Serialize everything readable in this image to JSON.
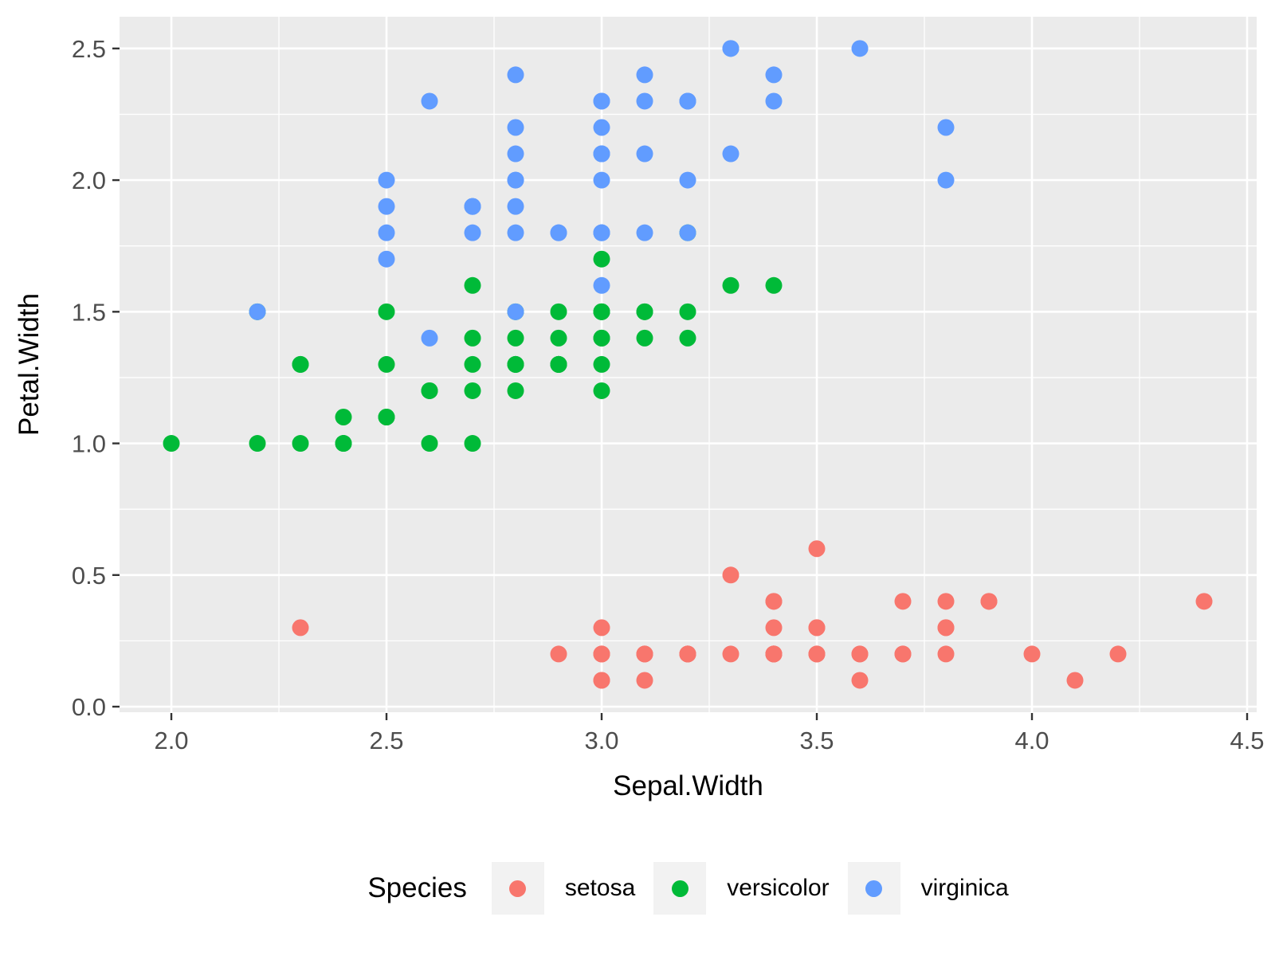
{
  "figure": {
    "background": "#FFFFFF"
  },
  "axes": {
    "x_title": "Sepal.Width",
    "y_title": "Petal.Width",
    "x_tick_labels": [
      "2.0",
      "2.5",
      "3.0",
      "3.5",
      "4.0",
      "4.5"
    ],
    "y_tick_labels": [
      "0.0",
      "0.5",
      "1.0",
      "1.5",
      "2.0",
      "2.5"
    ]
  },
  "legend": {
    "title": "Species",
    "position": "bottom",
    "items": [
      {
        "label": "setosa",
        "color": "#F8766D"
      },
      {
        "label": "versicolor",
        "color": "#00BA38"
      },
      {
        "label": "virginica",
        "color": "#619CFF"
      }
    ]
  },
  "chart_data": {
    "type": "scatter",
    "title": "",
    "xlabel": "Sepal.Width",
    "ylabel": "Petal.Width",
    "x_domain": [
      1.8796,
      4.5222
    ],
    "y_domain": [
      -0.0211,
      2.6206
    ],
    "x_ticks": [
      2.0,
      2.5,
      3.0,
      3.5,
      4.0,
      4.5
    ],
    "y_ticks": [
      0.0,
      0.5,
      1.0,
      1.5,
      2.0,
      2.5
    ],
    "x_minor_ticks": [
      2.25,
      2.75,
      3.25,
      3.75,
      4.25
    ],
    "y_minor_ticks": [
      0.25,
      0.75,
      1.25,
      1.75,
      2.25
    ],
    "grid": "major+minor",
    "legend_position": "bottom",
    "style": {
      "panel_bg": "#EBEBEB",
      "grid_color": "#FFFFFF",
      "major_grid_width": 2.6,
      "minor_grid_width": 1.3,
      "tick_label_color": "#4D4D4D",
      "axis_title_color": "#000000",
      "tick_mark_color": "#333333",
      "point_radius": 10.5,
      "legend_key_bg": "#F2F2F2"
    },
    "series": [
      {
        "name": "setosa",
        "color": "#F8766D",
        "points": [
          [
            3.5,
            0.2
          ],
          [
            3.0,
            0.2
          ],
          [
            3.2,
            0.2
          ],
          [
            3.1,
            0.2
          ],
          [
            3.6,
            0.2
          ],
          [
            3.9,
            0.4
          ],
          [
            3.4,
            0.3
          ],
          [
            3.4,
            0.2
          ],
          [
            2.9,
            0.2
          ],
          [
            3.1,
            0.1
          ],
          [
            3.7,
            0.2
          ],
          [
            3.4,
            0.2
          ],
          [
            3.0,
            0.1
          ],
          [
            3.0,
            0.1
          ],
          [
            4.0,
            0.2
          ],
          [
            4.4,
            0.4
          ],
          [
            3.9,
            0.4
          ],
          [
            3.5,
            0.3
          ],
          [
            3.8,
            0.3
          ],
          [
            3.8,
            0.3
          ],
          [
            3.4,
            0.2
          ],
          [
            3.7,
            0.4
          ],
          [
            3.6,
            0.2
          ],
          [
            3.3,
            0.5
          ],
          [
            3.4,
            0.2
          ],
          [
            3.0,
            0.2
          ],
          [
            3.4,
            0.4
          ],
          [
            3.5,
            0.2
          ],
          [
            3.4,
            0.2
          ],
          [
            3.2,
            0.2
          ],
          [
            3.1,
            0.2
          ],
          [
            3.4,
            0.4
          ],
          [
            4.1,
            0.1
          ],
          [
            4.2,
            0.2
          ],
          [
            3.1,
            0.2
          ],
          [
            3.2,
            0.2
          ],
          [
            3.5,
            0.2
          ],
          [
            3.6,
            0.1
          ],
          [
            3.0,
            0.2
          ],
          [
            3.4,
            0.2
          ],
          [
            3.5,
            0.3
          ],
          [
            2.3,
            0.3
          ],
          [
            3.2,
            0.2
          ],
          [
            3.5,
            0.6
          ],
          [
            3.8,
            0.4
          ],
          [
            3.0,
            0.3
          ],
          [
            3.8,
            0.2
          ],
          [
            3.2,
            0.2
          ],
          [
            3.7,
            0.2
          ],
          [
            3.3,
            0.2
          ]
        ]
      },
      {
        "name": "versicolor",
        "color": "#00BA38",
        "points": [
          [
            3.2,
            1.4
          ],
          [
            3.2,
            1.5
          ],
          [
            3.1,
            1.5
          ],
          [
            2.3,
            1.3
          ],
          [
            2.8,
            1.5
          ],
          [
            2.8,
            1.3
          ],
          [
            3.3,
            1.6
          ],
          [
            2.4,
            1.0
          ],
          [
            2.9,
            1.3
          ],
          [
            2.7,
            1.4
          ],
          [
            2.0,
            1.0
          ],
          [
            3.0,
            1.5
          ],
          [
            2.2,
            1.0
          ],
          [
            2.9,
            1.4
          ],
          [
            2.9,
            1.3
          ],
          [
            3.1,
            1.4
          ],
          [
            3.0,
            1.5
          ],
          [
            2.7,
            1.0
          ],
          [
            2.2,
            1.5
          ],
          [
            2.5,
            1.1
          ],
          [
            3.2,
            1.8
          ],
          [
            2.8,
            1.3
          ],
          [
            2.5,
            1.5
          ],
          [
            2.8,
            1.2
          ],
          [
            2.9,
            1.3
          ],
          [
            3.0,
            1.4
          ],
          [
            2.8,
            1.4
          ],
          [
            3.0,
            1.7
          ],
          [
            2.9,
            1.5
          ],
          [
            2.6,
            1.0
          ],
          [
            2.4,
            1.1
          ],
          [
            2.4,
            1.0
          ],
          [
            2.7,
            1.2
          ],
          [
            2.7,
            1.6
          ],
          [
            3.0,
            1.5
          ],
          [
            3.4,
            1.6
          ],
          [
            3.1,
            1.5
          ],
          [
            2.3,
            1.3
          ],
          [
            3.0,
            1.3
          ],
          [
            2.5,
            1.3
          ],
          [
            2.6,
            1.2
          ],
          [
            3.0,
            1.4
          ],
          [
            2.6,
            1.2
          ],
          [
            2.3,
            1.0
          ],
          [
            2.7,
            1.3
          ],
          [
            3.0,
            1.2
          ],
          [
            2.9,
            1.3
          ],
          [
            2.9,
            1.3
          ],
          [
            2.5,
            1.1
          ],
          [
            2.8,
            1.3
          ]
        ]
      },
      {
        "name": "virginica",
        "color": "#619CFF",
        "points": [
          [
            3.3,
            2.5
          ],
          [
            2.7,
            1.9
          ],
          [
            3.0,
            2.1
          ],
          [
            2.9,
            1.8
          ],
          [
            3.0,
            2.2
          ],
          [
            3.0,
            2.1
          ],
          [
            2.5,
            1.7
          ],
          [
            2.9,
            1.8
          ],
          [
            2.5,
            1.8
          ],
          [
            3.6,
            2.5
          ],
          [
            3.2,
            2.0
          ],
          [
            2.7,
            1.9
          ],
          [
            3.0,
            2.1
          ],
          [
            2.5,
            2.0
          ],
          [
            2.8,
            2.4
          ],
          [
            3.2,
            2.3
          ],
          [
            3.0,
            1.8
          ],
          [
            3.8,
            2.2
          ],
          [
            2.6,
            2.3
          ],
          [
            2.2,
            1.5
          ],
          [
            3.2,
            2.3
          ],
          [
            2.8,
            2.0
          ],
          [
            2.8,
            2.0
          ],
          [
            2.7,
            1.8
          ],
          [
            3.3,
            2.1
          ],
          [
            3.2,
            1.8
          ],
          [
            2.8,
            1.8
          ],
          [
            3.0,
            1.8
          ],
          [
            2.8,
            2.1
          ],
          [
            3.0,
            1.6
          ],
          [
            2.8,
            1.9
          ],
          [
            3.8,
            2.0
          ],
          [
            2.8,
            2.2
          ],
          [
            2.8,
            1.5
          ],
          [
            2.6,
            1.4
          ],
          [
            3.0,
            2.3
          ],
          [
            3.4,
            2.4
          ],
          [
            3.1,
            1.8
          ],
          [
            3.0,
            1.8
          ],
          [
            3.1,
            2.1
          ],
          [
            3.1,
            2.4
          ],
          [
            3.1,
            2.3
          ],
          [
            2.7,
            1.9
          ],
          [
            3.2,
            2.3
          ],
          [
            3.3,
            2.5
          ],
          [
            3.0,
            2.3
          ],
          [
            2.5,
            1.9
          ],
          [
            3.0,
            2.0
          ],
          [
            3.4,
            2.3
          ],
          [
            3.0,
            1.8
          ]
        ]
      }
    ]
  }
}
